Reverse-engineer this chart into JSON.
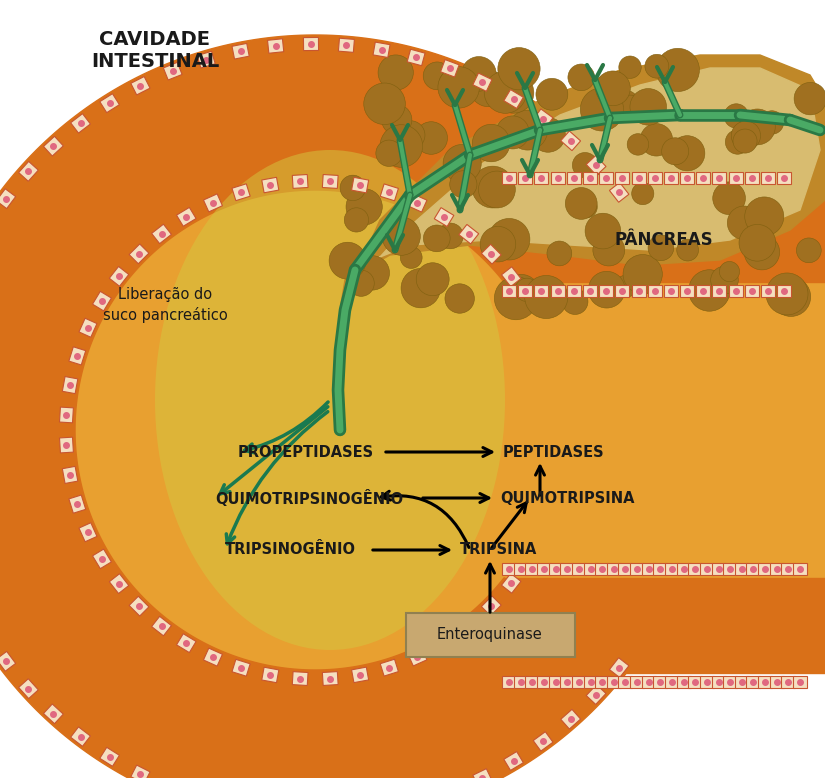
{
  "title_top": "CAVIDADE\nINTESTINAL",
  "label_pancreas": "PÂNCREAS",
  "label_liberacao": "Liberação do\nsuco pancreático",
  "label_propeptidases": "PROPEPTIDASES",
  "label_quimotripsinogenio": "QUIMOTRIPSINOGÊNIO",
  "label_tripsinogenio": "TRIPSINOGÊNIO",
  "label_peptidases": "PEPTIDASES",
  "label_quimotripsina": "QUIMOTRIPSINA",
  "label_tripsina": "TRIPSINA",
  "label_enteroquinase": "Enteroquinase",
  "wall_orange": "#d97018",
  "wall_orange_light": "#e89030",
  "interior_orange": "#e8a030",
  "interior_yellow": "#d4b840",
  "green_arrow_color": "#1a7a50",
  "box_fill": "#c8a870",
  "box_edge": "#908050",
  "text_color": "#1a1a1a",
  "cell_face": "#f5dfc0",
  "cell_edge": "#c85530",
  "cell_dot": "#e06880",
  "panc_base": "#c08828",
  "panc_dark": "#a07020",
  "duct_dark": "#2a7845",
  "duct_light": "#4aaa65",
  "figsize": [
    8.25,
    7.78
  ],
  "dpi": 100
}
